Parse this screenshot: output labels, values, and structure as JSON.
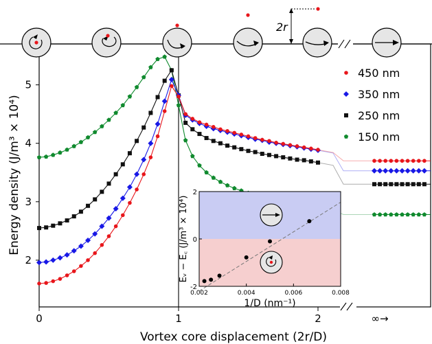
{
  "chart_data": [
    {
      "type": "line",
      "xlabel": "Vortex core displacement (2r/D)",
      "ylabel": "Energy density (J/m³ × 10⁴)",
      "xlim": [
        0,
        3.0
      ],
      "ylim": [
        1.2,
        5.7
      ],
      "x_ticks": [
        "0",
        "1",
        "2"
      ],
      "x_infinity_label": "∞→",
      "y_ticks": [
        "2",
        "3",
        "4",
        "5"
      ],
      "legend_placement": "top-right",
      "series": [
        {
          "name": "450 nm",
          "color": "#e8161b",
          "marker": "circle",
          "points": [
            [
              0.0,
              1.6
            ],
            [
              0.05,
              1.61
            ],
            [
              0.1,
              1.64
            ],
            [
              0.15,
              1.68
            ],
            [
              0.2,
              1.74
            ],
            [
              0.25,
              1.81
            ],
            [
              0.3,
              1.9
            ],
            [
              0.35,
              2.0
            ],
            [
              0.4,
              2.12
            ],
            [
              0.45,
              2.26
            ],
            [
              0.5,
              2.41
            ],
            [
              0.55,
              2.58
            ],
            [
              0.6,
              2.77
            ],
            [
              0.65,
              2.98
            ],
            [
              0.7,
              3.21
            ],
            [
              0.75,
              3.47
            ],
            [
              0.8,
              3.76
            ],
            [
              0.85,
              4.12
            ],
            [
              0.9,
              4.55
            ],
            [
              0.95,
              4.98
            ],
            [
              1.0,
              4.8
            ],
            [
              1.05,
              4.5
            ],
            [
              1.1,
              4.42
            ],
            [
              1.15,
              4.36
            ],
            [
              1.2,
              4.32
            ],
            [
              1.25,
              4.28
            ],
            [
              1.3,
              4.24
            ],
            [
              1.35,
              4.21
            ],
            [
              1.4,
              4.18
            ],
            [
              1.45,
              4.15
            ],
            [
              1.5,
              4.12
            ],
            [
              1.55,
              4.09
            ],
            [
              1.6,
              4.06
            ],
            [
              1.65,
              4.04
            ],
            [
              1.7,
              4.01
            ],
            [
              1.75,
              3.99
            ],
            [
              1.8,
              3.97
            ],
            [
              1.85,
              3.95
            ],
            [
              1.9,
              3.93
            ],
            [
              1.95,
              3.91
            ],
            [
              2.0,
              3.89
            ]
          ],
          "asymptote": 3.7
        },
        {
          "name": "350 nm",
          "color": "#1818e6",
          "marker": "diamond",
          "points": [
            [
              0.0,
              1.96
            ],
            [
              0.05,
              1.97
            ],
            [
              0.1,
              2.0
            ],
            [
              0.15,
              2.04
            ],
            [
              0.2,
              2.09
            ],
            [
              0.25,
              2.16
            ],
            [
              0.3,
              2.24
            ],
            [
              0.35,
              2.34
            ],
            [
              0.4,
              2.45
            ],
            [
              0.45,
              2.58
            ],
            [
              0.5,
              2.72
            ],
            [
              0.55,
              2.88
            ],
            [
              0.6,
              3.06
            ],
            [
              0.65,
              3.25
            ],
            [
              0.7,
              3.47
            ],
            [
              0.75,
              3.72
            ],
            [
              0.8,
              4.0
            ],
            [
              0.85,
              4.33
            ],
            [
              0.9,
              4.72
            ],
            [
              0.95,
              5.09
            ],
            [
              1.0,
              4.82
            ],
            [
              1.05,
              4.48
            ],
            [
              1.1,
              4.4
            ],
            [
              1.15,
              4.34
            ],
            [
              1.2,
              4.29
            ],
            [
              1.25,
              4.25
            ],
            [
              1.3,
              4.22
            ],
            [
              1.35,
              4.19
            ],
            [
              1.4,
              4.16
            ],
            [
              1.45,
              4.13
            ],
            [
              1.5,
              4.1
            ],
            [
              1.55,
              4.07
            ],
            [
              1.6,
              4.05
            ],
            [
              1.65,
              4.02
            ],
            [
              1.7,
              4.0
            ],
            [
              1.75,
              3.98
            ],
            [
              1.8,
              3.96
            ],
            [
              1.85,
              3.94
            ],
            [
              1.9,
              3.92
            ],
            [
              1.95,
              3.9
            ],
            [
              2.0,
              3.88
            ]
          ],
          "asymptote": 3.53
        },
        {
          "name": "250 nm",
          "color": "#111111",
          "marker": "square",
          "points": [
            [
              0.0,
              2.55
            ],
            [
              0.05,
              2.56
            ],
            [
              0.1,
              2.59
            ],
            [
              0.15,
              2.63
            ],
            [
              0.2,
              2.68
            ],
            [
              0.25,
              2.75
            ],
            [
              0.3,
              2.83
            ],
            [
              0.35,
              2.93
            ],
            [
              0.4,
              3.04
            ],
            [
              0.45,
              3.17
            ],
            [
              0.5,
              3.31
            ],
            [
              0.55,
              3.47
            ],
            [
              0.6,
              3.64
            ],
            [
              0.65,
              3.83
            ],
            [
              0.7,
              4.04
            ],
            [
              0.75,
              4.27
            ],
            [
              0.8,
              4.52
            ],
            [
              0.85,
              4.79
            ],
            [
              0.9,
              5.07
            ],
            [
              0.95,
              5.25
            ],
            [
              1.0,
              4.82
            ],
            [
              1.05,
              4.35
            ],
            [
              1.1,
              4.24
            ],
            [
              1.15,
              4.16
            ],
            [
              1.2,
              4.09
            ],
            [
              1.25,
              4.04
            ],
            [
              1.3,
              4.0
            ],
            [
              1.35,
              3.96
            ],
            [
              1.4,
              3.93
            ],
            [
              1.45,
              3.9
            ],
            [
              1.5,
              3.87
            ],
            [
              1.55,
              3.85
            ],
            [
              1.6,
              3.82
            ],
            [
              1.65,
              3.8
            ],
            [
              1.7,
              3.78
            ],
            [
              1.75,
              3.76
            ],
            [
              1.8,
              3.74
            ],
            [
              1.85,
              3.72
            ],
            [
              1.9,
              3.71
            ],
            [
              1.95,
              3.69
            ],
            [
              2.0,
              3.67
            ]
          ],
          "asymptote": 3.3
        },
        {
          "name": "150 nm",
          "color": "#108a2e",
          "marker": "pentagon",
          "points": [
            [
              0.0,
              3.76
            ],
            [
              0.05,
              3.77
            ],
            [
              0.1,
              3.8
            ],
            [
              0.15,
              3.84
            ],
            [
              0.2,
              3.89
            ],
            [
              0.25,
              3.95
            ],
            [
              0.3,
              4.02
            ],
            [
              0.35,
              4.1
            ],
            [
              0.4,
              4.19
            ],
            [
              0.45,
              4.29
            ],
            [
              0.5,
              4.4
            ],
            [
              0.55,
              4.52
            ],
            [
              0.6,
              4.65
            ],
            [
              0.65,
              4.8
            ],
            [
              0.7,
              4.96
            ],
            [
              0.75,
              5.13
            ],
            [
              0.8,
              5.3
            ],
            [
              0.85,
              5.44
            ],
            [
              0.9,
              5.48
            ],
            [
              0.95,
              5.25
            ],
            [
              1.0,
              4.65
            ],
            [
              1.05,
              4.05
            ],
            [
              1.1,
              3.78
            ],
            [
              1.15,
              3.62
            ],
            [
              1.2,
              3.5
            ],
            [
              1.25,
              3.41
            ],
            [
              1.3,
              3.34
            ],
            [
              1.35,
              3.28
            ],
            [
              1.4,
              3.23
            ],
            [
              1.45,
              3.19
            ],
            [
              1.5,
              3.15
            ],
            [
              1.55,
              3.12
            ],
            [
              1.6,
              3.09
            ],
            [
              1.65,
              3.06
            ],
            [
              1.7,
              3.03
            ],
            [
              1.75,
              3.01
            ],
            [
              1.8,
              2.99
            ],
            [
              1.85,
              2.97
            ],
            [
              1.9,
              2.95
            ],
            [
              1.95,
              2.93
            ],
            [
              2.0,
              2.91
            ]
          ],
          "asymptote": 2.78
        }
      ]
    },
    {
      "type": "scatter",
      "xlabel": "1/D (nm⁻¹)",
      "ylabel": "Eᵥ − E꜀ (J/m³ × 10⁴)",
      "xlim": [
        0.002,
        0.008
      ],
      "ylim": [
        -2,
        2
      ],
      "x_ticks": [
        "0.002",
        "0.004",
        "0.006",
        "0.008"
      ],
      "y_ticks": [
        "-2",
        "0",
        "2"
      ],
      "points": [
        [
          0.00222,
          -1.78
        ],
        [
          0.0025,
          -1.72
        ],
        [
          0.00286,
          -1.55
        ],
        [
          0.004,
          -0.78
        ],
        [
          0.005,
          -0.1
        ],
        [
          0.00667,
          0.75
        ]
      ],
      "fit_line": [
        [
          0.002,
          -2.2
        ],
        [
          0.008,
          1.55
        ]
      ],
      "upper_region_color": "#c9ccf3",
      "lower_region_color": "#f6cfcf"
    }
  ],
  "schematic": {
    "radius_label": "2r",
    "break_mark": "//",
    "icons": [
      "vortex-core-center",
      "vortex-core-shifted",
      "vortex-core-edge",
      "curved-magnetization",
      "flatter-magnetization",
      "uniform-magnetization"
    ]
  }
}
